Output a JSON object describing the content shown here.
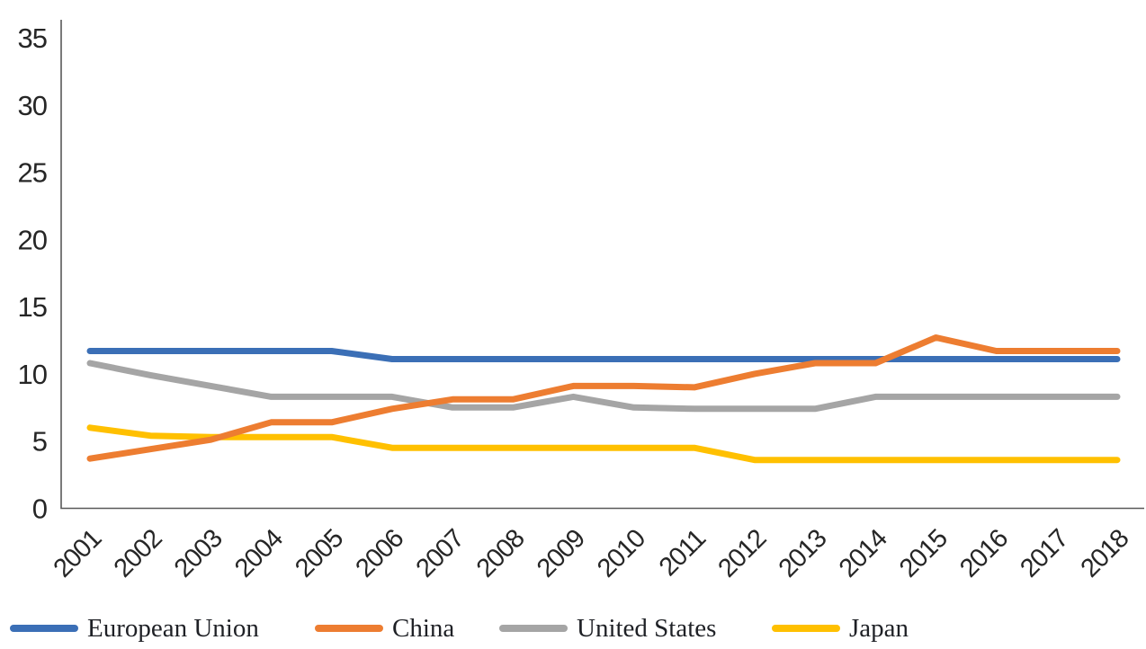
{
  "chart_data": {
    "type": "line",
    "title": "",
    "xlabel": "",
    "ylabel": "",
    "x": [
      "2001",
      "2002",
      "2003",
      "2004",
      "2005",
      "2006",
      "2007",
      "2008",
      "2009",
      "2010",
      "2011",
      "2012",
      "2013",
      "2014",
      "2015",
      "2016",
      "2017",
      "2018"
    ],
    "series": [
      {
        "name": "European Union",
        "color": "#3B6FB6",
        "values": [
          11.7,
          11.7,
          11.7,
          11.7,
          11.7,
          11.1,
          11.1,
          11.1,
          11.1,
          11.1,
          11.1,
          11.1,
          11.1,
          11.1,
          11.1,
          11.1,
          11.1,
          11.1
        ]
      },
      {
        "name": "China",
        "color": "#ED7D31",
        "values": [
          3.7,
          4.4,
          5.1,
          6.4,
          6.4,
          7.4,
          8.1,
          8.1,
          9.1,
          9.1,
          9.0,
          10.0,
          10.8,
          10.8,
          12.7,
          11.7,
          11.7,
          11.7
        ]
      },
      {
        "name": "United States",
        "color": "#A5A5A5",
        "values": [
          10.8,
          9.9,
          9.1,
          8.3,
          8.3,
          8.3,
          7.5,
          7.5,
          8.3,
          7.5,
          7.4,
          7.4,
          7.4,
          8.3,
          8.3,
          8.3,
          8.3,
          8.3
        ]
      },
      {
        "name": "Japan",
        "color": "#FFC000",
        "values": [
          6.0,
          5.4,
          5.3,
          5.3,
          5.3,
          4.5,
          4.5,
          4.5,
          4.5,
          4.5,
          4.5,
          3.6,
          3.6,
          3.6,
          3.6,
          3.6,
          3.6,
          3.6
        ]
      }
    ],
    "ylim": [
      0,
      35
    ],
    "yticks": [
      0,
      5,
      10,
      15,
      20,
      25,
      30,
      35
    ],
    "grid": false,
    "legend_position": "bottom",
    "axis_color": "#595959",
    "tick_text_color": "#262626",
    "draw_order": [
      "European Union",
      "United States",
      "Japan",
      "China"
    ]
  }
}
